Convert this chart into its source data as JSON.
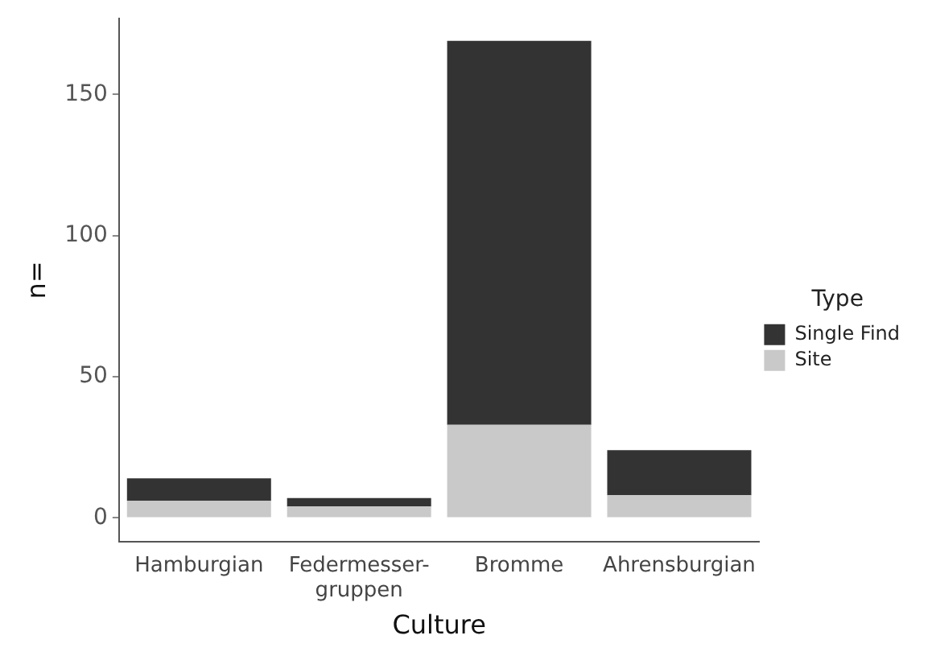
{
  "chart_data": {
    "type": "bar",
    "stacked": true,
    "xlabel": "Culture",
    "ylabel": "n=",
    "legend_title": "Type",
    "legend": "right",
    "categories": [
      "Hamburgian",
      "Federmesser-\ngruppen",
      "Bromme",
      "Ahrensburgian"
    ],
    "series": [
      {
        "name": "Site",
        "color": "#c8c9c8",
        "values": [
          6,
          4,
          33,
          8
        ]
      },
      {
        "name": "Single Find",
        "color": "#333333",
        "values": [
          8,
          3,
          136,
          16
        ]
      }
    ],
    "ylim": [
      -8.5,
      177
    ],
    "yticks": [
      0,
      50,
      100,
      150
    ],
    "grid": false
  }
}
